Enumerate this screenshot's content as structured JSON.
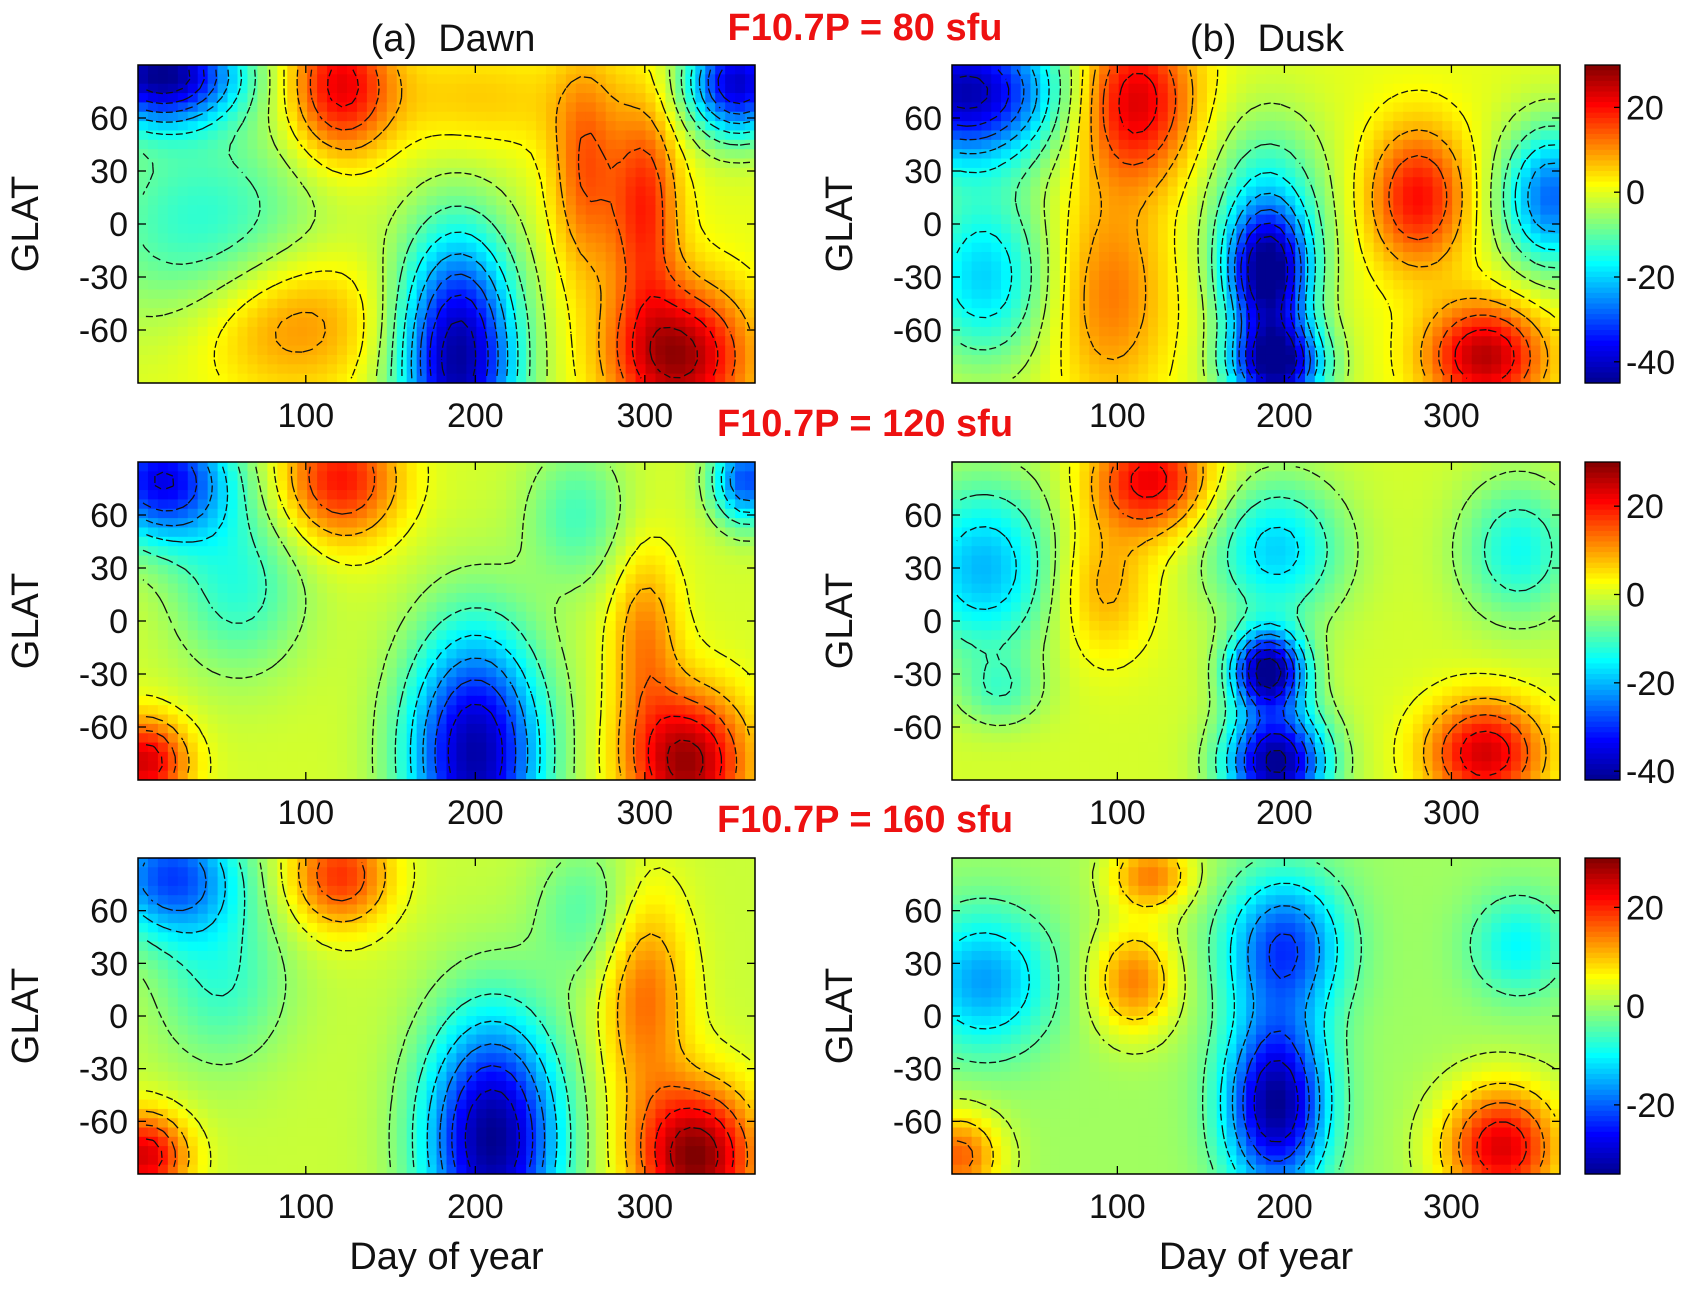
{
  "chart_data": [
    {
      "type": "heatmap",
      "title": "(a)  Dawn",
      "flux_label": "F10.7P = 80 sfu",
      "ylabel": "GLAT",
      "xlabel": "",
      "xlim": [
        1,
        365
      ],
      "ylim": [
        -90,
        90
      ],
      "x_ticks": [
        "100",
        "200",
        "300"
      ],
      "y_ticks": [
        "60",
        "30",
        "0",
        "-30",
        "-60"
      ],
      "colorbar_ticks": [],
      "clim": [
        -45,
        30
      ],
      "features": [
        {
          "day": 15,
          "glat": 85,
          "value": -44,
          "sx": 45,
          "sy": 28
        },
        {
          "day": 40,
          "glat": 0,
          "value": -14,
          "sx": 70,
          "sy": 60
        },
        {
          "day": 120,
          "glat": 78,
          "value": 22,
          "sx": 30,
          "sy": 40
        },
        {
          "day": 90,
          "glat": -55,
          "value": 12,
          "sx": 55,
          "sy": 40
        },
        {
          "day": 190,
          "glat": -75,
          "value": -44,
          "sx": 35,
          "sy": 70
        },
        {
          "day": 200,
          "glat": 70,
          "value": 6,
          "sx": 60,
          "sy": 30
        },
        {
          "day": 265,
          "glat": 30,
          "value": 14,
          "sx": 20,
          "sy": 60
        },
        {
          "day": 320,
          "glat": -75,
          "value": 28,
          "sx": 40,
          "sy": 40
        },
        {
          "day": 300,
          "glat": 10,
          "value": 18,
          "sx": 20,
          "sy": 60
        },
        {
          "day": 355,
          "glat": 80,
          "value": -40,
          "sx": 30,
          "sy": 30
        }
      ]
    },
    {
      "type": "heatmap",
      "title": "(b)  Dusk",
      "flux_label": "",
      "ylabel": "GLAT",
      "xlabel": "",
      "xlim": [
        1,
        365
      ],
      "ylim": [
        -90,
        90
      ],
      "x_ticks": [
        "100",
        "200",
        "300"
      ],
      "y_ticks": [
        "60",
        "30",
        "0",
        "-30",
        "-60"
      ],
      "colorbar_ticks": [
        "20",
        "0",
        "-20",
        "-40"
      ],
      "clim": [
        -45,
        30
      ],
      "features": [
        {
          "day": 10,
          "glat": 75,
          "value": -42,
          "sx": 55,
          "sy": 40
        },
        {
          "day": 20,
          "glat": -30,
          "value": -20,
          "sx": 40,
          "sy": 50
        },
        {
          "day": 110,
          "glat": 70,
          "value": 24,
          "sx": 35,
          "sy": 45
        },
        {
          "day": 95,
          "glat": -40,
          "value": 12,
          "sx": 35,
          "sy": 60
        },
        {
          "day": 190,
          "glat": 10,
          "value": -16,
          "sx": 35,
          "sy": 50
        },
        {
          "day": 190,
          "glat": -30,
          "value": -40,
          "sx": 25,
          "sy": 35
        },
        {
          "day": 195,
          "glat": -80,
          "value": -44,
          "sx": 28,
          "sy": 25
        },
        {
          "day": 280,
          "glat": 15,
          "value": 20,
          "sx": 30,
          "sy": 40
        },
        {
          "day": 320,
          "glat": -75,
          "value": 26,
          "sx": 35,
          "sy": 30
        },
        {
          "day": 360,
          "glat": 15,
          "value": -28,
          "sx": 30,
          "sy": 40
        }
      ]
    },
    {
      "type": "heatmap",
      "title": "",
      "flux_label": "F10.7P = 120 sfu",
      "ylabel": "GLAT",
      "xlabel": "",
      "xlim": [
        1,
        365
      ],
      "ylim": [
        -90,
        90
      ],
      "x_ticks": [
        "100",
        "200",
        "300"
      ],
      "y_ticks": [
        "60",
        "30",
        "0",
        "-30",
        "-60"
      ],
      "colorbar_ticks": [],
      "clim": [
        -42,
        30
      ],
      "features": [
        {
          "day": 15,
          "glat": 80,
          "value": -34,
          "sx": 40,
          "sy": 35
        },
        {
          "day": 120,
          "glat": 80,
          "value": 20,
          "sx": 35,
          "sy": 35
        },
        {
          "day": 200,
          "glat": -75,
          "value": -40,
          "sx": 40,
          "sy": 70
        },
        {
          "day": 5,
          "glat": -80,
          "value": 24,
          "sx": 25,
          "sy": 25
        },
        {
          "day": 325,
          "glat": -80,
          "value": 28,
          "sx": 35,
          "sy": 40
        },
        {
          "day": 300,
          "glat": -10,
          "value": 12,
          "sx": 20,
          "sy": 50
        },
        {
          "day": 260,
          "glat": 60,
          "value": -10,
          "sx": 30,
          "sy": 40
        },
        {
          "day": 60,
          "glat": 20,
          "value": -12,
          "sx": 40,
          "sy": 50
        },
        {
          "day": 360,
          "glat": 80,
          "value": -28,
          "sx": 20,
          "sy": 25
        }
      ]
    },
    {
      "type": "heatmap",
      "title": "",
      "flux_label": "",
      "ylabel": "GLAT",
      "xlabel": "",
      "xlim": [
        1,
        365
      ],
      "ylim": [
        -90,
        90
      ],
      "x_ticks": [
        "100",
        "200",
        "300"
      ],
      "y_ticks": [
        "60",
        "30",
        "0",
        "-30",
        "-60"
      ],
      "colorbar_ticks": [
        "20",
        "0",
        "-20",
        "-40"
      ],
      "clim": [
        -42,
        30
      ],
      "features": [
        {
          "day": 20,
          "glat": 30,
          "value": -20,
          "sx": 45,
          "sy": 50
        },
        {
          "day": 120,
          "glat": 80,
          "value": 22,
          "sx": 35,
          "sy": 30
        },
        {
          "day": 90,
          "glat": 20,
          "value": 10,
          "sx": 30,
          "sy": 40
        },
        {
          "day": 195,
          "glat": 40,
          "value": -18,
          "sx": 40,
          "sy": 40
        },
        {
          "day": 190,
          "glat": -28,
          "value": -42,
          "sx": 22,
          "sy": 22
        },
        {
          "day": 195,
          "glat": -80,
          "value": -42,
          "sx": 30,
          "sy": 30
        },
        {
          "day": 320,
          "glat": -75,
          "value": 24,
          "sx": 35,
          "sy": 30
        },
        {
          "day": 340,
          "glat": 40,
          "value": -14,
          "sx": 35,
          "sy": 40
        },
        {
          "day": 30,
          "glat": -40,
          "value": -8,
          "sx": 25,
          "sy": 20
        }
      ]
    },
    {
      "type": "heatmap",
      "title": "",
      "flux_label": "F10.7P = 160 sfu",
      "ylabel": "GLAT",
      "xlabel": "Day of year",
      "xlim": [
        1,
        365
      ],
      "ylim": [
        -90,
        90
      ],
      "x_ticks": [
        "100",
        "200",
        "300"
      ],
      "y_ticks": [
        "60",
        "30",
        "0",
        "-30",
        "-60"
      ],
      "colorbar_ticks": [],
      "clim": [
        -40,
        30
      ],
      "features": [
        {
          "day": 20,
          "glat": 80,
          "value": -26,
          "sx": 40,
          "sy": 35
        },
        {
          "day": 120,
          "glat": 80,
          "value": 18,
          "sx": 30,
          "sy": 30
        },
        {
          "day": 210,
          "glat": -70,
          "value": -40,
          "sx": 40,
          "sy": 70
        },
        {
          "day": 5,
          "glat": -80,
          "value": 24,
          "sx": 25,
          "sy": 25
        },
        {
          "day": 330,
          "glat": -80,
          "value": 30,
          "sx": 35,
          "sy": 40
        },
        {
          "day": 300,
          "glat": 10,
          "value": 14,
          "sx": 25,
          "sy": 60
        },
        {
          "day": 265,
          "glat": 60,
          "value": -8,
          "sx": 30,
          "sy": 40
        },
        {
          "day": 50,
          "glat": 20,
          "value": -10,
          "sx": 40,
          "sy": 50
        }
      ]
    },
    {
      "type": "heatmap",
      "title": "",
      "flux_label": "",
      "ylabel": "GLAT",
      "xlabel": "Day of year",
      "xlim": [
        1,
        365
      ],
      "ylim": [
        -90,
        90
      ],
      "x_ticks": [
        "100",
        "200",
        "300"
      ],
      "y_ticks": [
        "60",
        "30",
        "0",
        "-30",
        "-60"
      ],
      "colorbar_ticks": [
        "20",
        "0",
        "-20"
      ],
      "clim": [
        -34,
        30
      ],
      "features": [
        {
          "day": 20,
          "glat": 20,
          "value": -16,
          "sx": 40,
          "sy": 40
        },
        {
          "day": 110,
          "glat": 20,
          "value": 14,
          "sx": 25,
          "sy": 30
        },
        {
          "day": 200,
          "glat": 40,
          "value": -22,
          "sx": 35,
          "sy": 40
        },
        {
          "day": 195,
          "glat": -50,
          "value": -34,
          "sx": 30,
          "sy": 50
        },
        {
          "day": 330,
          "glat": -75,
          "value": 24,
          "sx": 35,
          "sy": 35
        },
        {
          "day": 340,
          "glat": 40,
          "value": -10,
          "sx": 30,
          "sy": 30
        },
        {
          "day": 5,
          "glat": -80,
          "value": 16,
          "sx": 25,
          "sy": 25
        },
        {
          "day": 120,
          "glat": 80,
          "value": 14,
          "sx": 25,
          "sy": 20
        }
      ]
    }
  ],
  "colormap": [
    "#00008f",
    "#0000ff",
    "#0080ff",
    "#00ffff",
    "#80ff80",
    "#ffff00",
    "#ff8000",
    "#ff0000",
    "#800000"
  ]
}
